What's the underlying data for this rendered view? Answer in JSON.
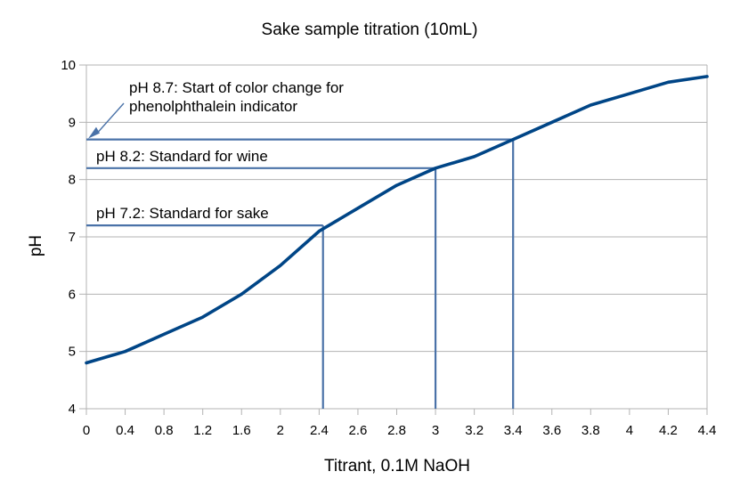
{
  "chart_data": {
    "type": "line",
    "title": "Sake sample titration (10mL)",
    "xlabel": "Titrant, 0.1M NaOH",
    "ylabel": "pH",
    "xlim": [
      0,
      4.4
    ],
    "ylim": [
      4,
      10
    ],
    "x_ticks": [
      "0",
      "0.4",
      "0.8",
      "1.2",
      "1.6",
      "2",
      "2.4",
      "2.6",
      "2.8",
      "3",
      "3.2",
      "3.4",
      "3.6",
      "3.8",
      "4",
      "4.2",
      "4.4"
    ],
    "y_ticks": [
      "4",
      "5",
      "6",
      "7",
      "8",
      "9",
      "10"
    ],
    "grid": "horizontal",
    "series": [
      {
        "color": "#004586",
        "points": [
          [
            0,
            4.8
          ],
          [
            0.4,
            5.0
          ],
          [
            0.8,
            5.3
          ],
          [
            1.2,
            5.6
          ],
          [
            1.6,
            6.0
          ],
          [
            2.0,
            6.5
          ],
          [
            2.4,
            7.1
          ],
          [
            2.6,
            7.5
          ],
          [
            2.8,
            7.9
          ],
          [
            3.0,
            8.2
          ],
          [
            3.2,
            8.4
          ],
          [
            3.4,
            8.7
          ],
          [
            3.6,
            9.0
          ],
          [
            3.8,
            9.3
          ],
          [
            4.0,
            9.5
          ],
          [
            4.2,
            9.7
          ],
          [
            4.4,
            9.8
          ]
        ]
      }
    ],
    "reference_lines": [
      {
        "label": "pH 7.2: Standard for sake",
        "ph": 7.2,
        "tick_index": 6.1
      },
      {
        "label": "pH 8.2: Standard for wine",
        "ph": 8.2,
        "tick_index": 9
      },
      {
        "label": "pH 8.7: Start of color change for phenolphthalein indicator",
        "label_lines": [
          "pH 8.7: Start of color change for",
          "phenolphthalein indicator"
        ],
        "ph": 8.7,
        "tick_index": 11
      }
    ],
    "annotation_color": "#4a72a8"
  }
}
